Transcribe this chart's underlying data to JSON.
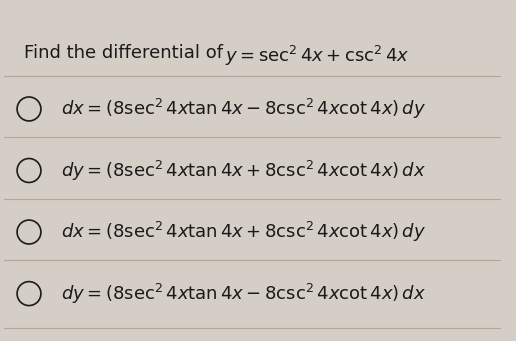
{
  "title_plain": "Find the differential of ",
  "title_math": "$y = \\sec^2 4x + \\csc^2 4x$",
  "options": [
    "$dx = (8\\sec^2 4x\\tan 4x - 8\\csc^2 4x\\cot 4x)\\,dy$",
    "$dy = (8\\sec^2 4x\\tan 4x + 8\\csc^2 4x\\cot 4x)\\,dx$",
    "$dx = (8\\sec^2 4x\\tan 4x + 8\\csc^2 4x\\cot 4x)\\,dy$",
    "$dy = (8\\sec^2 4x\\tan 4x - 8\\csc^2 4x\\cot 4x)\\,dx$"
  ],
  "bg_color": "#d4cec6",
  "text_color": "#1a1a1a",
  "line_color": "#b0a898",
  "title_fontsize": 13,
  "option_fontsize": 13,
  "fig_width": 5.16,
  "fig_height": 3.41,
  "dpi": 100
}
